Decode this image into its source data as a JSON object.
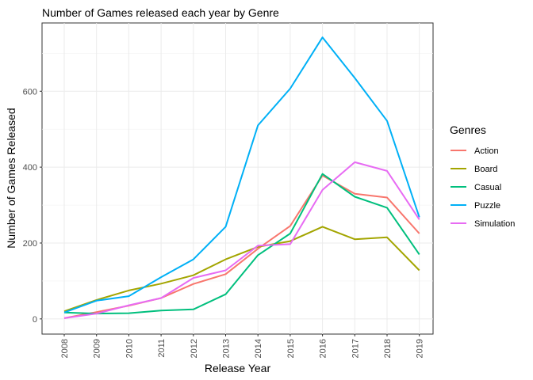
{
  "chart_data": {
    "type": "line",
    "title": "Number of Games released each year by Genre",
    "xlabel": "Release Year",
    "ylabel": "Number of Games Released",
    "x": [
      "2008",
      "2009",
      "2010",
      "2011",
      "2012",
      "2013",
      "2014",
      "2015",
      "2016",
      "2017",
      "2018",
      "2019"
    ],
    "ylim": [
      -40,
      780
    ],
    "yticks": [
      0,
      200,
      400,
      600
    ],
    "grid": true,
    "legend_title": "Genres",
    "legend_position": "right",
    "series": [
      {
        "name": "Action",
        "color": "#F8766D",
        "values": [
          2,
          18,
          35,
          55,
          92,
          118,
          185,
          245,
          378,
          330,
          320,
          225
        ]
      },
      {
        "name": "Board",
        "color": "#A3A500",
        "values": [
          20,
          50,
          75,
          93,
          115,
          157,
          190,
          205,
          243,
          210,
          215,
          128
        ]
      },
      {
        "name": "Casual",
        "color": "#00BF7D",
        "values": [
          17,
          14,
          15,
          22,
          25,
          65,
          168,
          225,
          382,
          322,
          293,
          170
        ]
      },
      {
        "name": "Puzzle",
        "color": "#00B0F6",
        "values": [
          17,
          48,
          60,
          110,
          157,
          243,
          510,
          607,
          742,
          635,
          522,
          268
        ]
      },
      {
        "name": "Simulation",
        "color": "#E76BF3",
        "values": [
          2,
          14,
          36,
          55,
          108,
          128,
          193,
          197,
          340,
          413,
          390,
          262
        ]
      }
    ]
  }
}
